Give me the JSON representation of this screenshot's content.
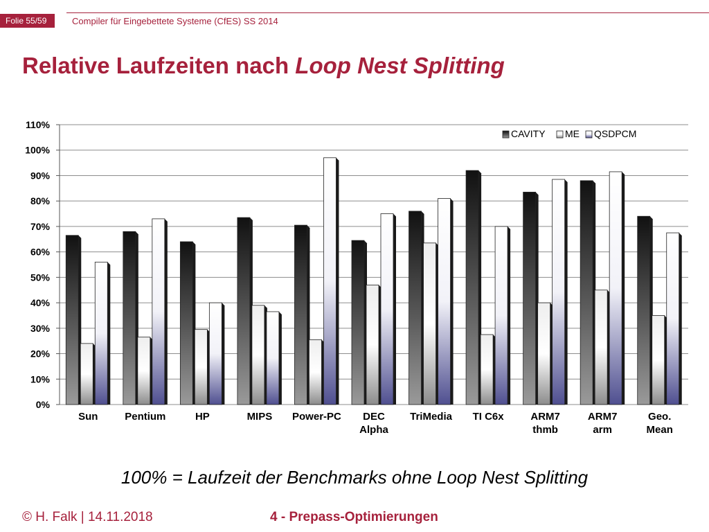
{
  "header": {
    "slide_badge": "Folie 55/59",
    "course": "Compiler für Eingebettete Systeme (CfES) SS 2014"
  },
  "title": {
    "plain": "Relative Laufzeiten nach ",
    "italic": "Loop Nest Splitting"
  },
  "chart_data": {
    "type": "bar",
    "title": "",
    "xlabel": "",
    "ylabel": "",
    "ylim": [
      0,
      110
    ],
    "yticks": [
      "0%",
      "10%",
      "20%",
      "30%",
      "40%",
      "50%",
      "60%",
      "70%",
      "80%",
      "90%",
      "100%",
      "110%"
    ],
    "grid": true,
    "legend_position": "top-right",
    "categories": [
      [
        "Sun"
      ],
      [
        "Pentium"
      ],
      [
        "HP"
      ],
      [
        "MIPS"
      ],
      [
        "Power-PC"
      ],
      [
        "DEC",
        "Alpha"
      ],
      [
        "TriMedia"
      ],
      [
        "TI C6x"
      ],
      [
        "ARM7",
        "thmb"
      ],
      [
        "ARM7",
        "arm"
      ],
      [
        "Geo.",
        "Mean"
      ]
    ],
    "series": [
      {
        "name": "CAVITY",
        "values": [
          66.5,
          68,
          64,
          73.5,
          70.5,
          64.5,
          76,
          92,
          83.5,
          88,
          74
        ]
      },
      {
        "name": "ME",
        "values": [
          24,
          26.5,
          29.5,
          39,
          25.5,
          47,
          63.5,
          27.5,
          40,
          45,
          35
        ]
      },
      {
        "name": "QSDPCM",
        "values": [
          56,
          73,
          40,
          36.5,
          97,
          75,
          81,
          70,
          88.5,
          91.5,
          67.5
        ]
      }
    ],
    "colors": {
      "CAVITY": "#2b2b2b",
      "ME": "#ffffff",
      "QSDPCM": "#5a5a96"
    }
  },
  "caption": "100% = Laufzeit der Benchmarks ohne Loop Nest Splitting",
  "footer": {
    "author": "© H. Falk | 14.11.2018",
    "chapter": "4 - Prepass-Optimierungen"
  }
}
